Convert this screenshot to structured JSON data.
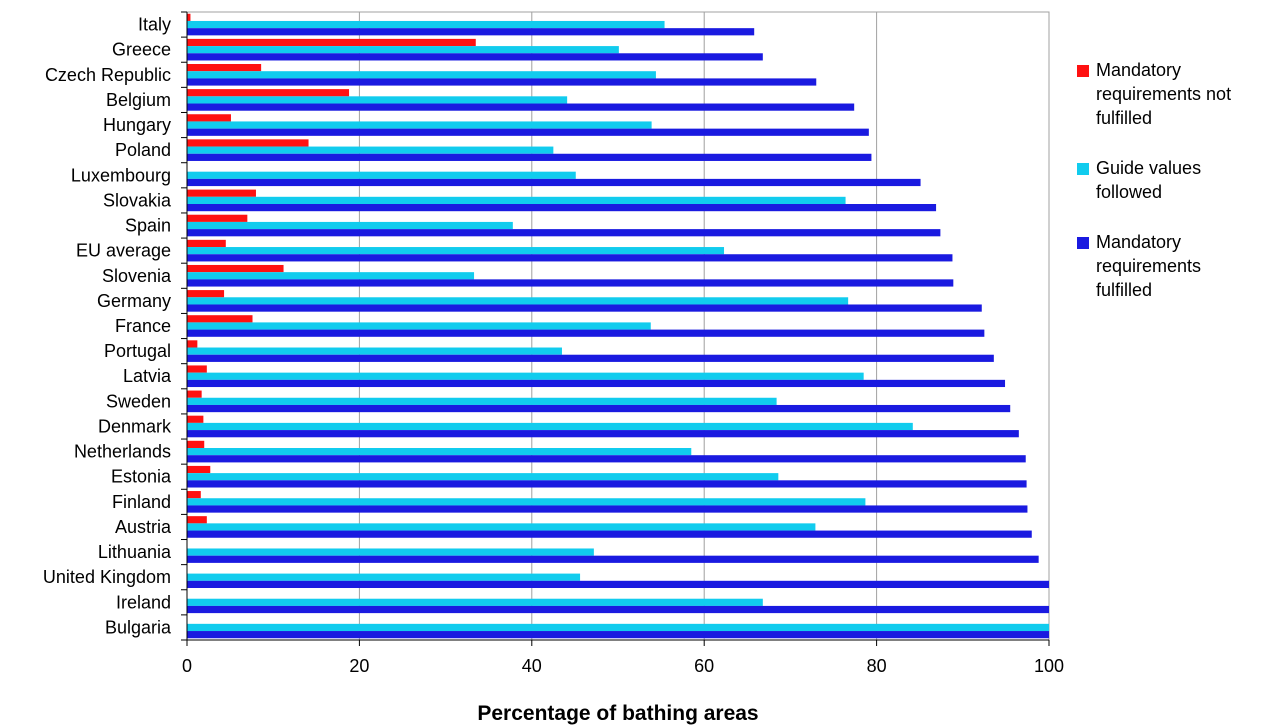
{
  "chart_data": {
    "type": "bar",
    "orientation": "horizontal",
    "categories": [
      "Italy",
      "Greece",
      "Czech Republic",
      "Belgium",
      "Hungary",
      "Poland",
      "Luxembourg",
      "Slovakia",
      "Spain",
      "EU average",
      "Slovenia",
      "Germany",
      "France",
      "Portugal",
      "Latvia",
      "Sweden",
      "Denmark",
      "Netherlands",
      "Estonia",
      "Finland",
      "Austria",
      "Lithuania",
      "United Kingdom",
      "Ireland",
      "Bulgaria"
    ],
    "series": [
      {
        "name": "Mandatory requirements not fulfilled",
        "color": "#ff1111",
        "values": [
          0.4,
          33.5,
          8.6,
          18.8,
          5.1,
          14.1,
          0,
          8.0,
          7.0,
          4.5,
          11.2,
          4.3,
          7.6,
          1.2,
          2.3,
          1.7,
          1.9,
          2.0,
          2.7,
          1.6,
          2.3,
          0,
          0,
          0,
          0
        ]
      },
      {
        "name": "Guide values followed",
        "color": "#11ccee",
        "values": [
          55.4,
          50.1,
          54.4,
          44.1,
          53.9,
          42.5,
          45.1,
          76.4,
          37.8,
          62.3,
          33.3,
          76.7,
          53.8,
          43.5,
          78.5,
          68.4,
          84.2,
          58.5,
          68.6,
          78.7,
          72.9,
          47.2,
          45.6,
          66.8,
          100
        ]
      },
      {
        "name": "Mandatory requirements fulfilled",
        "color": "#1a1ae0",
        "values": [
          65.8,
          66.8,
          73.0,
          77.4,
          79.1,
          79.4,
          85.1,
          86.9,
          87.4,
          88.8,
          88.9,
          92.2,
          92.5,
          93.6,
          94.9,
          95.5,
          96.5,
          97.3,
          97.4,
          97.5,
          98.0,
          98.8,
          100,
          100,
          100
        ]
      }
    ],
    "xlabel": "Percentage of bathing areas",
    "xlim": [
      0,
      100
    ],
    "xticks": [
      "0",
      "20",
      "40",
      "60",
      "80",
      "100"
    ],
    "xtick_values": [
      0,
      20,
      40,
      60,
      80,
      100
    ],
    "grid": true,
    "legend_position": "right"
  },
  "legend": [
    {
      "lines": [
        "Mandatory",
        "requirements not",
        "fulfilled"
      ],
      "color": "#ff1111"
    },
    {
      "lines": [
        "Guide values",
        "followed"
      ],
      "color": "#11ccee"
    },
    {
      "lines": [
        "Mandatory",
        "requirements",
        "fulfilled"
      ],
      "color": "#1a1ae0"
    }
  ]
}
